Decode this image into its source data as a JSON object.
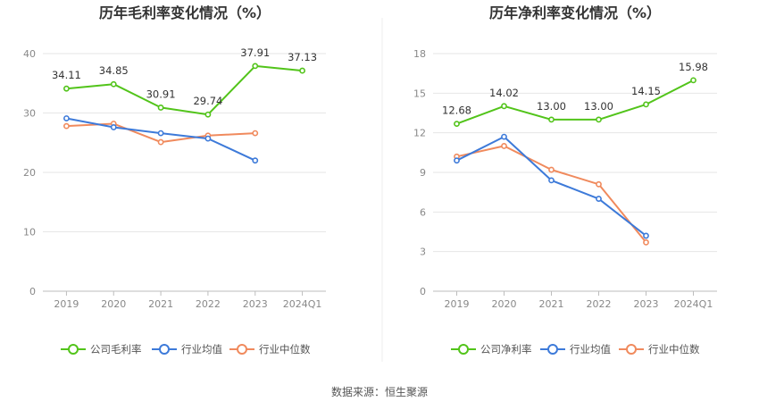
{
  "chart_data": [
    {
      "type": "line",
      "title": "历年毛利率变化情况（%）",
      "categories": [
        "2019",
        "2020",
        "2021",
        "2022",
        "2023",
        "2024Q1"
      ],
      "ylim": [
        0,
        40
      ],
      "yticks": [
        0,
        10,
        20,
        30,
        40
      ],
      "grid": true,
      "legend_position": "bottom",
      "series": [
        {
          "name": "公司毛利率",
          "color": "#52c41a",
          "labels": true,
          "values": [
            34.11,
            34.85,
            30.91,
            29.74,
            37.91,
            37.13
          ]
        },
        {
          "name": "行业均值",
          "color": "#3d7ad9",
          "labels": false,
          "values": [
            29.1,
            27.6,
            26.6,
            25.7,
            22.0,
            null
          ]
        },
        {
          "name": "行业中位数",
          "color": "#f08a5d",
          "labels": false,
          "values": [
            27.8,
            28.2,
            25.1,
            26.2,
            26.6,
            null
          ]
        }
      ]
    },
    {
      "type": "line",
      "title": "历年净利率变化情况（%）",
      "categories": [
        "2019",
        "2020",
        "2021",
        "2022",
        "2023",
        "2024Q1"
      ],
      "ylim": [
        0,
        18
      ],
      "yticks": [
        0,
        3,
        6,
        9,
        12,
        15,
        18
      ],
      "grid": true,
      "legend_position": "bottom",
      "series": [
        {
          "name": "公司净利率",
          "color": "#52c41a",
          "labels": true,
          "values": [
            12.68,
            14.02,
            13.0,
            13.0,
            14.15,
            15.98
          ]
        },
        {
          "name": "行业均值",
          "color": "#3d7ad9",
          "labels": false,
          "values": [
            9.9,
            11.7,
            8.4,
            7.0,
            4.2,
            null
          ]
        },
        {
          "name": "行业中位数",
          "color": "#f08a5d",
          "labels": false,
          "values": [
            10.2,
            11.0,
            9.2,
            8.1,
            3.7,
            null
          ]
        }
      ]
    }
  ],
  "footer": {
    "source": "数据来源：恒生聚源"
  }
}
